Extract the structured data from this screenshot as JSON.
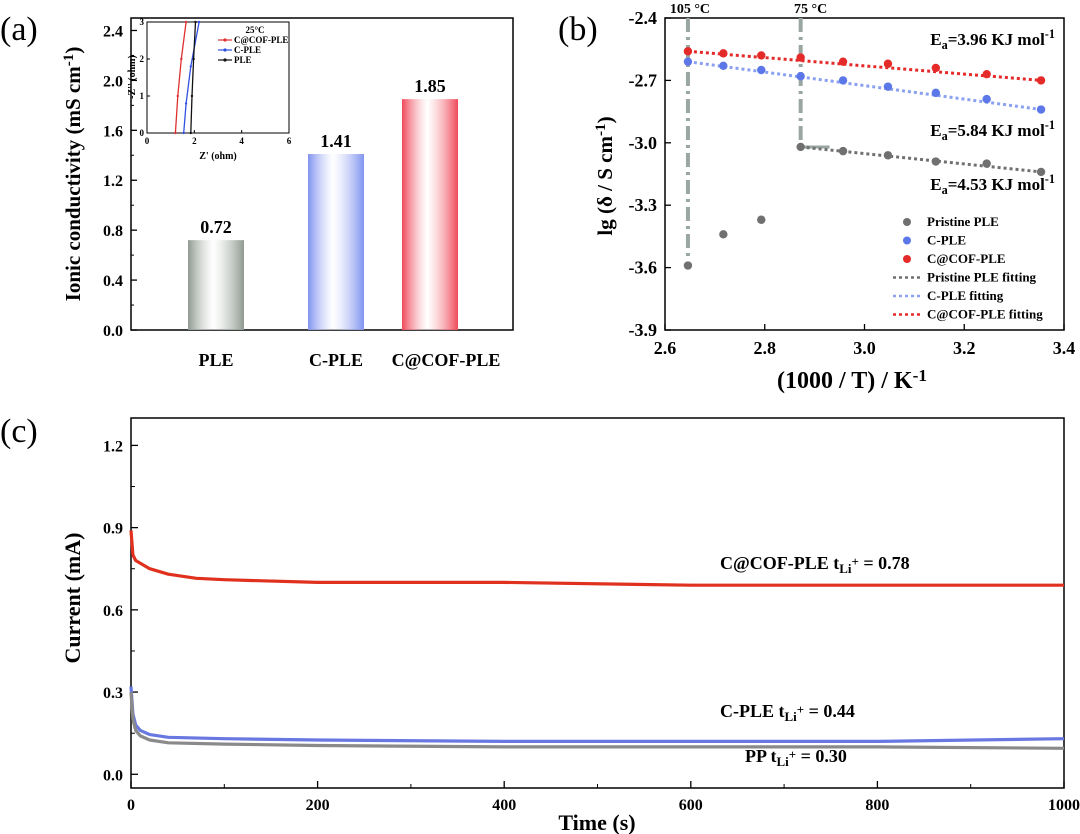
{
  "panels": {
    "a": "(a)",
    "b": "(b)",
    "c": "(c)"
  },
  "chart_data": [
    {
      "id": "a",
      "type": "bar",
      "ylabel": "Ionic conductivity (mS cm",
      "ylabel_sup": "-1",
      "ylabel_end": ")",
      "ylim": [
        0,
        2.5
      ],
      "yticks": [
        "0.0",
        "0.4",
        "0.8",
        "1.2",
        "1.6",
        "2.0",
        "2.4"
      ],
      "categories": [
        "PLE",
        "C-PLE",
        "C@COF-PLE"
      ],
      "values": [
        0.72,
        1.41,
        1.85
      ],
      "value_labels": [
        "0.72",
        "1.41",
        "1.85"
      ],
      "colors": [
        "#8f9a90",
        "#8093f0",
        "#ef4a5a"
      ],
      "inset": {
        "type": "line",
        "title": "25°C",
        "xlabel": "Z' (ohm)",
        "ylabel": "-Z'' (ohm)",
        "xlim": [
          0,
          6
        ],
        "ylim": [
          0,
          3
        ],
        "xticks": [
          "0",
          "2",
          "4",
          "6"
        ],
        "yticks": [
          "0",
          "1",
          "2",
          "3"
        ],
        "series": [
          {
            "name": "C@COF-PLE",
            "color": "#e03030",
            "points": [
              [
                1.2,
                0
              ],
              [
                1.3,
                1.0
              ],
              [
                1.45,
                2.0
              ],
              [
                1.65,
                3.0
              ]
            ]
          },
          {
            "name": "C-PLE",
            "color": "#3050e0",
            "points": [
              [
                1.55,
                0
              ],
              [
                1.65,
                0.8
              ],
              [
                1.85,
                1.8
              ],
              [
                2.2,
                3.0
              ]
            ]
          },
          {
            "name": "PLE",
            "color": "#111111",
            "points": [
              [
                1.85,
                0
              ],
              [
                1.9,
                1.0
              ],
              [
                1.97,
                2.0
              ],
              [
                2.05,
                3.0
              ]
            ]
          }
        ]
      }
    },
    {
      "id": "b",
      "type": "scatter",
      "xlabel": "(1000 / T) / K",
      "xlabel_sup": "-1",
      "ylabel": "lg (δ / S cm",
      "ylabel_sup": "-1",
      "ylabel_end": ")",
      "xlim": [
        2.6,
        3.4
      ],
      "ylim": [
        -3.9,
        -2.4
      ],
      "xticks": [
        "2.6",
        "2.8",
        "3.0",
        "3.2",
        "3.4"
      ],
      "yticks": [
        "-2.4",
        "-2.7",
        "-3.0",
        "-3.3",
        "-3.6",
        "-3.9"
      ],
      "vlines": [
        {
          "x": 2.646,
          "label": "105 °C"
        },
        {
          "x": 2.872,
          "label": "75 °C"
        }
      ],
      "series": [
        {
          "name": "Pristine PLE",
          "color": "#707070",
          "x": [
            2.646,
            2.717,
            2.793,
            2.872,
            2.957,
            3.047,
            3.143,
            3.245,
            3.354
          ],
          "y": [
            -3.59,
            -3.44,
            -3.37,
            -3.02,
            -3.04,
            -3.06,
            -3.09,
            -3.1,
            -3.14
          ]
        },
        {
          "name": "C-PLE",
          "color": "#5c78e8",
          "x": [
            2.646,
            2.717,
            2.793,
            2.872,
            2.957,
            3.047,
            3.143,
            3.245,
            3.354
          ],
          "y": [
            -2.61,
            -2.63,
            -2.65,
            -2.68,
            -2.7,
            -2.73,
            -2.76,
            -2.79,
            -2.84
          ]
        },
        {
          "name": "C@COF-PLE",
          "color": "#e52a2a",
          "x": [
            2.646,
            2.717,
            2.793,
            2.872,
            2.957,
            3.047,
            3.143,
            3.245,
            3.354
          ],
          "y": [
            -2.56,
            -2.57,
            -2.58,
            -2.59,
            -2.61,
            -2.62,
            -2.64,
            -2.67,
            -2.7
          ]
        }
      ],
      "fits": [
        {
          "name": "Pristine PLE fitting",
          "color": "#707070",
          "x": [
            2.872,
            3.354
          ],
          "y": [
            -3.02,
            -3.14
          ]
        },
        {
          "name": "C-PLE fitting",
          "color": "#8aa0f0",
          "x": [
            2.646,
            3.354
          ],
          "y": [
            -2.61,
            -2.84
          ]
        },
        {
          "name": "C@COF-PLE fitting",
          "color": "#e52a2a",
          "x": [
            2.646,
            3.354
          ],
          "y": [
            -2.56,
            -2.7
          ]
        }
      ],
      "annotations": [
        {
          "main": "E",
          "sub": "a",
          "text": "=3.96 KJ mol",
          "sup": "-1",
          "color": "#e52a2a"
        },
        {
          "main": "E",
          "sub": "a",
          "text": "=5.84 KJ mol",
          "sup": "-1",
          "color": "#4c6ae0"
        },
        {
          "main": "E",
          "sub": "a",
          "text": "=4.53 KJ mol",
          "sup": "-1",
          "color": "#707070"
        }
      ]
    },
    {
      "id": "c",
      "type": "line",
      "xlabel": "Time (s)",
      "ylabel": "Current (mA)",
      "xlim": [
        0,
        1000
      ],
      "ylim": [
        -0.05,
        1.3
      ],
      "xticks": [
        "0",
        "200",
        "400",
        "600",
        "800",
        "1000"
      ],
      "yticks": [
        "0.0",
        "0.3",
        "0.6",
        "0.9",
        "1.2"
      ],
      "series": [
        {
          "name": "C@COF-PLE",
          "color": "#e0301e",
          "t_label": "t",
          "t_sub": "Li",
          "t_sup": "+",
          "t_value": " = 0.78",
          "points": [
            [
              0,
              0.89
            ],
            [
              2,
              0.8
            ],
            [
              5,
              0.78
            ],
            [
              10,
              0.77
            ],
            [
              20,
              0.75
            ],
            [
              40,
              0.73
            ],
            [
              70,
              0.715
            ],
            [
              100,
              0.71
            ],
            [
              200,
              0.7
            ],
            [
              400,
              0.7
            ],
            [
              600,
              0.69
            ],
            [
              800,
              0.69
            ],
            [
              1000,
              0.69
            ]
          ]
        },
        {
          "name": "C-PLE",
          "color": "#6878e0",
          "t_label": "t",
          "t_sub": "Li",
          "t_sup": "+",
          "t_value": " = 0.44",
          "points": [
            [
              0,
              0.32
            ],
            [
              2,
              0.22
            ],
            [
              5,
              0.18
            ],
            [
              10,
              0.16
            ],
            [
              20,
              0.145
            ],
            [
              40,
              0.135
            ],
            [
              100,
              0.13
            ],
            [
              200,
              0.125
            ],
            [
              400,
              0.12
            ],
            [
              600,
              0.12
            ],
            [
              800,
              0.12
            ],
            [
              1000,
              0.13
            ]
          ]
        },
        {
          "name": "PP",
          "color": "#8a8a8a",
          "t_label": "t",
          "t_sub": "Li",
          "t_sup": "+",
          "t_value": " = 0.30",
          "points": [
            [
              0,
              0.3
            ],
            [
              2,
              0.2
            ],
            [
              5,
              0.16
            ],
            [
              10,
              0.14
            ],
            [
              20,
              0.125
            ],
            [
              40,
              0.115
            ],
            [
              100,
              0.11
            ],
            [
              200,
              0.105
            ],
            [
              400,
              0.1
            ],
            [
              600,
              0.1
            ],
            [
              800,
              0.1
            ],
            [
              1000,
              0.095
            ]
          ]
        }
      ]
    }
  ]
}
